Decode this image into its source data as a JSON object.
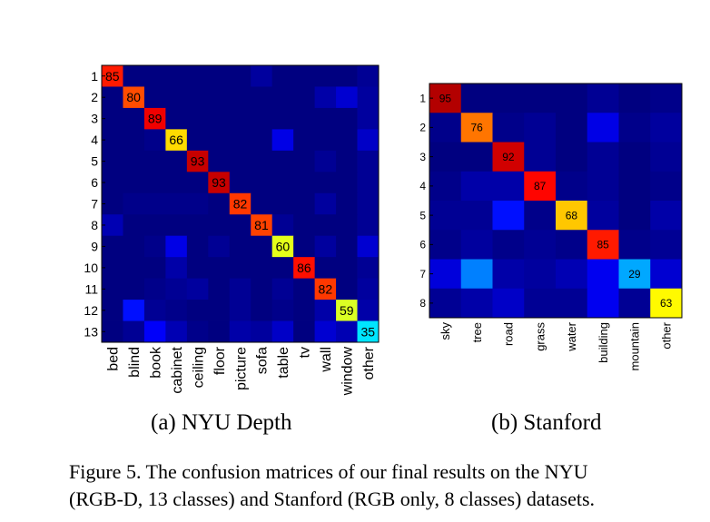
{
  "figure": {
    "caption_line1": "Figure 5. The confusion matrices of our final results on the NYU",
    "caption_line2": "(RGB-D, 13 classes) and Stanford (RGB only, 8 classes) datasets."
  },
  "chart_data": [
    {
      "type": "heatmap",
      "title": "(a) NYU Depth",
      "row_labels": [
        "1",
        "2",
        "3",
        "4",
        "5",
        "6",
        "7",
        "8",
        "9",
        "10",
        "11",
        "12",
        "13"
      ],
      "column_labels": [
        "bed",
        "blind",
        "book",
        "cabinet",
        "ceiling",
        "floor",
        "picture",
        "sofa",
        "table",
        "tv",
        "wall",
        "window",
        "other"
      ],
      "diagonal_labels": [
        85,
        80,
        89,
        66,
        93,
        93,
        82,
        81,
        60,
        86,
        82,
        59,
        35
      ],
      "value_range": [
        0,
        100
      ],
      "colormap": "jet",
      "matrix": [
        [
          85,
          0,
          0,
          0,
          0,
          0,
          0,
          3,
          0,
          0,
          0,
          0,
          2
        ],
        [
          0,
          80,
          0,
          0,
          0,
          0,
          0,
          0,
          0,
          0,
          4,
          8,
          3
        ],
        [
          0,
          0,
          89,
          0,
          0,
          0,
          0,
          0,
          0,
          0,
          0,
          0,
          3
        ],
        [
          0,
          0,
          1,
          66,
          0,
          0,
          0,
          0,
          10,
          0,
          0,
          0,
          7
        ],
        [
          0,
          0,
          0,
          0,
          93,
          0,
          0,
          0,
          0,
          0,
          2,
          0,
          2
        ],
        [
          0,
          0,
          0,
          0,
          0,
          93,
          0,
          0,
          0,
          0,
          0,
          0,
          2
        ],
        [
          0,
          1,
          1,
          1,
          1,
          0,
          82,
          0,
          0,
          0,
          3,
          0,
          2
        ],
        [
          5,
          0,
          0,
          0,
          0,
          0,
          0,
          81,
          2,
          0,
          0,
          0,
          2
        ],
        [
          0,
          0,
          1,
          10,
          0,
          2,
          0,
          0,
          60,
          0,
          3,
          0,
          8
        ],
        [
          0,
          0,
          0,
          4,
          0,
          0,
          0,
          0,
          0,
          86,
          0,
          0,
          2
        ],
        [
          0,
          0,
          1,
          2,
          3,
          0,
          2,
          0,
          2,
          0,
          82,
          0,
          3
        ],
        [
          0,
          14,
          2,
          1,
          0,
          0,
          2,
          0,
          1,
          0,
          4,
          59,
          4
        ],
        [
          0,
          2,
          12,
          5,
          1,
          0,
          4,
          3,
          7,
          0,
          8,
          5,
          35
        ]
      ]
    },
    {
      "type": "heatmap",
      "title": "(b) Stanford",
      "row_labels": [
        "1",
        "2",
        "3",
        "4",
        "5",
        "6",
        "7",
        "8"
      ],
      "column_labels": [
        "sky",
        "tree",
        "road",
        "grass",
        "water",
        "building",
        "mountain",
        "other"
      ],
      "diagonal_labels": [
        95,
        76,
        92,
        87,
        68,
        85,
        29,
        63
      ],
      "value_range": [
        0,
        100
      ],
      "colormap": "jet",
      "matrix": [
        [
          95,
          0,
          0,
          0,
          0,
          2,
          0,
          1
        ],
        [
          1,
          76,
          1,
          2,
          0,
          10,
          1,
          3
        ],
        [
          0,
          0,
          92,
          2,
          0,
          2,
          0,
          2
        ],
        [
          1,
          4,
          4,
          87,
          1,
          2,
          0,
          1
        ],
        [
          2,
          2,
          14,
          1,
          68,
          3,
          0,
          4
        ],
        [
          1,
          3,
          1,
          2,
          1,
          85,
          1,
          2
        ],
        [
          9,
          25,
          4,
          3,
          5,
          11,
          29,
          8
        ],
        [
          2,
          4,
          7,
          2,
          2,
          11,
          2,
          63
        ]
      ]
    }
  ]
}
